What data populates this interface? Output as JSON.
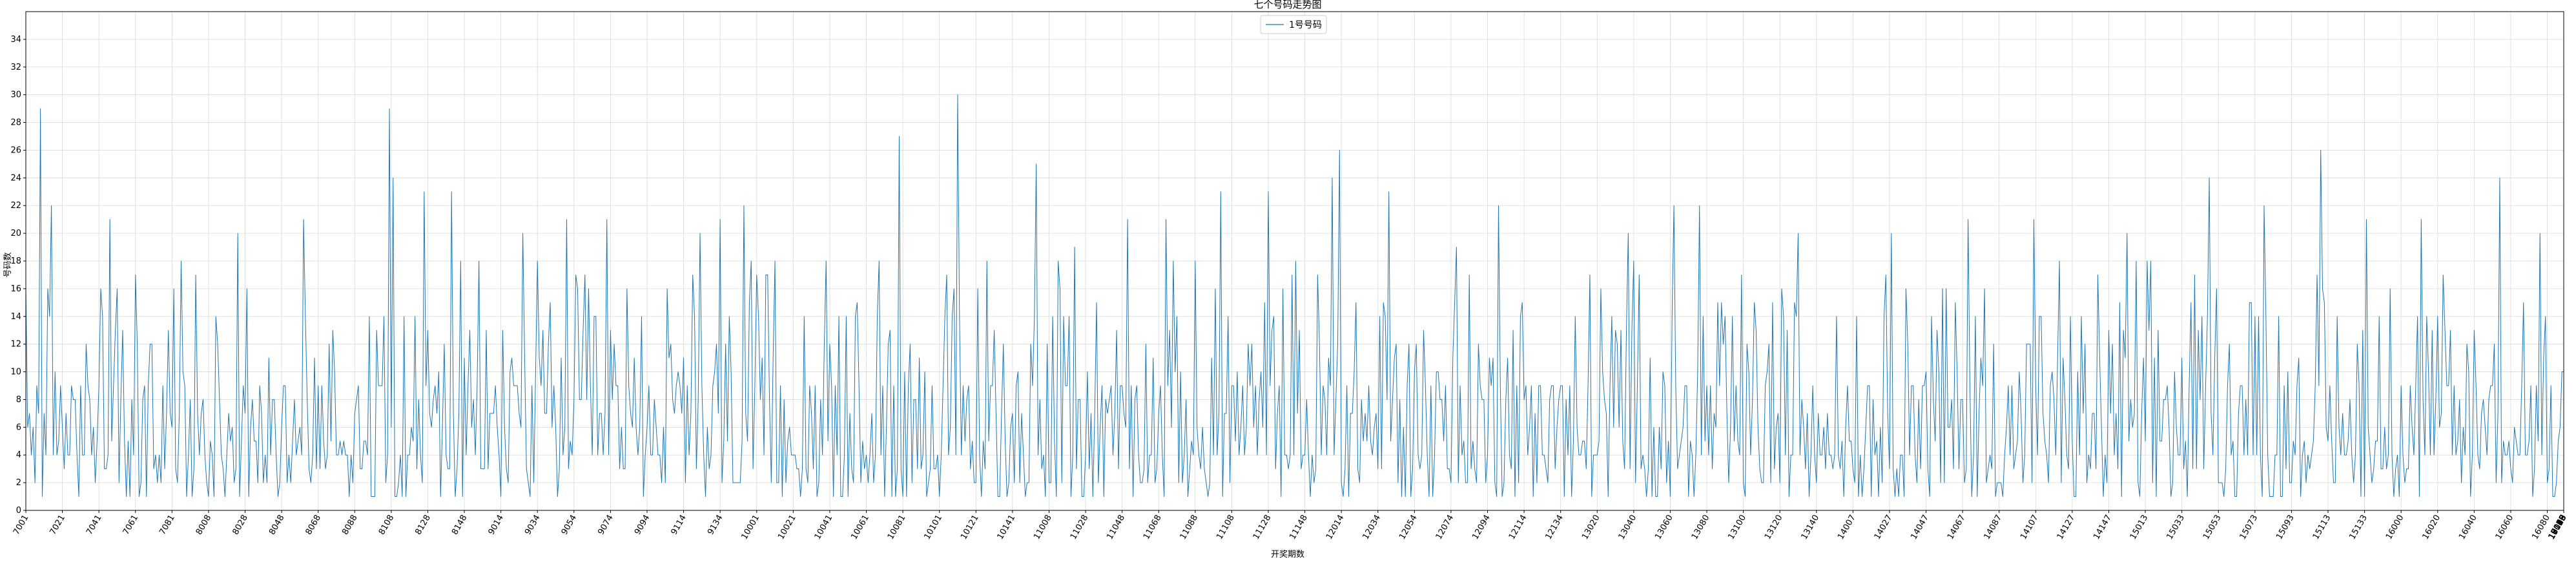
{
  "chart_data": {
    "type": "line",
    "title": "七个号码走势图",
    "xlabel": "开奖期数",
    "ylabel": "号码数",
    "legend": {
      "placement": "top-center",
      "entries": [
        "1号号码"
      ]
    },
    "grid": true,
    "ylim": [
      0,
      36
    ],
    "yticks": [
      0,
      2,
      4,
      6,
      8,
      10,
      12,
      14,
      16,
      18,
      20,
      22,
      24,
      26,
      28,
      30,
      32,
      34
    ],
    "xticks": [
      "7001",
      "7021",
      "7041",
      "7061",
      "7081",
      "8008",
      "8028",
      "8048",
      "8068",
      "8088",
      "8108",
      "8128",
      "8148",
      "9014",
      "9034",
      "9054",
      "9074",
      "9094",
      "9114",
      "9134",
      "10001",
      "10021",
      "10041",
      "10061",
      "10081",
      "10101",
      "10121",
      "10141",
      "11008",
      "11028",
      "11048",
      "11068",
      "11088",
      "11108",
      "11128",
      "11148",
      "12014",
      "12034",
      "12054",
      "12074",
      "12094",
      "12114",
      "12134",
      "13020",
      "13040",
      "13060",
      "13080",
      "13100",
      "13120",
      "13140",
      "14007",
      "14027",
      "14047",
      "14067",
      "14087",
      "14107",
      "14127",
      "14147",
      "15013",
      "15033",
      "15053",
      "15073",
      "15093",
      "15113",
      "15133",
      "16000",
      "16020",
      "16040",
      "16060",
      "16080",
      "16100",
      "16120",
      "16140",
      "17006",
      "17026",
      "17046",
      "17066",
      "17086",
      "17106",
      "17126",
      "17146",
      "18013",
      "18033",
      "18053",
      "18073",
      "18093",
      "18113",
      "18133",
      "19019",
      "19039",
      "19059",
      "19079",
      "19099",
      "19119",
      "19139"
    ],
    "series": [
      {
        "name": "1号号码",
        "color": "#1f77b4",
        "length": 1390,
        "peaks": [
          {
            "index": 8,
            "value": 29
          },
          {
            "index": 14,
            "value": 22
          },
          {
            "index": 46,
            "value": 21
          },
          {
            "index": 50,
            "value": 16
          },
          {
            "index": 60,
            "value": 17
          },
          {
            "index": 116,
            "value": 20
          },
          {
            "index": 152,
            "value": 21
          },
          {
            "index": 199,
            "value": 29
          },
          {
            "index": 201,
            "value": 24
          },
          {
            "index": 218,
            "value": 23
          },
          {
            "index": 233,
            "value": 23
          },
          {
            "index": 272,
            "value": 20
          },
          {
            "index": 296,
            "value": 21
          },
          {
            "index": 318,
            "value": 21
          },
          {
            "index": 369,
            "value": 20
          },
          {
            "index": 380,
            "value": 21
          },
          {
            "index": 393,
            "value": 22
          },
          {
            "index": 478,
            "value": 27
          },
          {
            "index": 510,
            "value": 30
          },
          {
            "index": 553,
            "value": 25
          },
          {
            "index": 574,
            "value": 19
          },
          {
            "index": 603,
            "value": 21
          },
          {
            "index": 624,
            "value": 21
          },
          {
            "index": 654,
            "value": 23
          },
          {
            "index": 680,
            "value": 23
          },
          {
            "index": 715,
            "value": 24
          },
          {
            "index": 719,
            "value": 26
          },
          {
            "index": 746,
            "value": 23
          },
          {
            "index": 783,
            "value": 19
          },
          {
            "index": 806,
            "value": 22
          },
          {
            "index": 877,
            "value": 20
          },
          {
            "index": 902,
            "value": 22
          },
          {
            "index": 916,
            "value": 22
          },
          {
            "index": 970,
            "value": 20
          },
          {
            "index": 1021,
            "value": 20
          },
          {
            "index": 1063,
            "value": 21
          },
          {
            "index": 1099,
            "value": 21
          },
          {
            "index": 1150,
            "value": 20
          },
          {
            "index": 1195,
            "value": 24
          },
          {
            "index": 1225,
            "value": 22
          },
          {
            "index": 1256,
            "value": 26
          },
          {
            "index": 1281,
            "value": 21
          },
          {
            "index": 1311,
            "value": 21
          },
          {
            "index": 1354,
            "value": 24
          },
          {
            "index": 1376,
            "value": 20
          },
          {
            "index": 1388,
            "value": 10
          }
        ]
      }
    ]
  }
}
